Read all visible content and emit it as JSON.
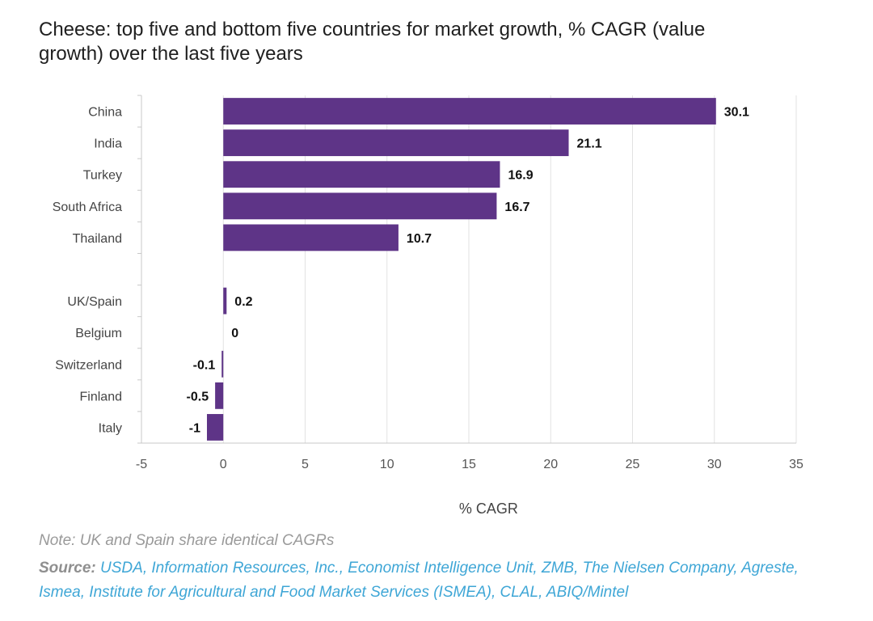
{
  "title": "Cheese: top five and bottom five countries for market growth, % CAGR (value growth) over the last five years",
  "chart_data": {
    "type": "bar",
    "orientation": "horizontal",
    "categories": [
      "China",
      "India",
      "Turkey",
      "South Africa",
      "Thailand",
      "",
      "UK/Spain",
      "Belgium",
      "Switzerland",
      "Finland",
      "Italy"
    ],
    "values": [
      30.1,
      21.1,
      16.9,
      16.7,
      10.7,
      null,
      0.2,
      0,
      -0.1,
      -0.5,
      -1
    ],
    "value_labels": [
      "30.1",
      "21.1",
      "16.9",
      "16.7",
      "10.7",
      "",
      "0.2",
      "0",
      "-0.1",
      "-0.5",
      "-1"
    ],
    "xlabel": "% CAGR",
    "ylabel": "",
    "xlim": [
      -5,
      35
    ],
    "xticks": [
      -5,
      0,
      5,
      10,
      15,
      20,
      25,
      30,
      35
    ],
    "grid": true,
    "bar_color": "#5e3487"
  },
  "note": "Note: UK and Spain share identical CAGRs",
  "source_label": "Source:",
  "source_text": "USDA, Information Resources, Inc., Economist Intelligence Unit, ZMB, The Nielsen Company, Agreste, Ismea, Institute for Agricultural and Food Market Services (ISMEA), CLAL, ABIQ/Mintel"
}
